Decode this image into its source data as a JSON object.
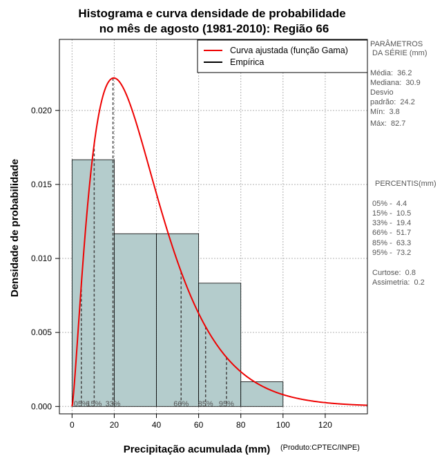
{
  "chart_data": {
    "type": "histogram",
    "title_line1": "Histograma e curva densidade de probabilidade",
    "title_line2": "no mês de agosto (1981-2010): Região 66",
    "xlabel": "Precipitação acumulada (mm)",
    "ylabel": "Densidade de probabilidade",
    "credit": "(Produto:CPTEC/INPE)",
    "xlim": [
      -6,
      140
    ],
    "ylim": [
      -0.0005,
      0.0248
    ],
    "x_ticks": [
      0,
      20,
      40,
      60,
      80,
      100,
      120
    ],
    "x_tick_labels": [
      "0",
      "20",
      "40",
      "60",
      "80",
      "100",
      "120"
    ],
    "y_ticks": [
      0.0,
      0.005,
      0.01,
      0.015,
      0.02
    ],
    "y_tick_labels": [
      "0.000",
      "0.005",
      "0.010",
      "0.015",
      "0.020"
    ],
    "grid": true,
    "bins": [
      {
        "from": 0,
        "to": 20,
        "density": 0.01667
      },
      {
        "from": 20,
        "to": 40,
        "density": 0.01167
      },
      {
        "from": 40,
        "to": 60,
        "density": 0.01167
      },
      {
        "from": 60,
        "to": 80,
        "density": 0.00833
      },
      {
        "from": 80,
        "to": 100,
        "density": 0.00167
      }
    ],
    "bar_fill": "#b4cccc",
    "curve": {
      "name": "Curva ajustada (função Gama)",
      "color": "#ee0000",
      "distribution": "gamma",
      "shape": 2.365,
      "scale": 14.49,
      "x_range": [
        0,
        140
      ]
    },
    "legend": {
      "position": "top-right",
      "entries": [
        {
          "label": "Curva ajustada (função Gama)",
          "color": "#ee0000"
        },
        {
          "label": "Empírica",
          "color": "#000000"
        }
      ]
    },
    "percentile_markers": [
      {
        "value": 4.4,
        "label": "05%"
      },
      {
        "value": 10.5,
        "label": "15%"
      },
      {
        "value": 19.4,
        "label": "33%"
      },
      {
        "value": 51.7,
        "label": "66%"
      },
      {
        "value": 63.3,
        "label": "85%"
      },
      {
        "value": 73.2,
        "label": "95%"
      }
    ]
  },
  "side_panel": {
    "params_title_1": "PARÂMETROS",
    "params_title_2": " DA SÉRIE (mm)",
    "media": "Média:  36.2",
    "mediana": "Mediana:  30.9",
    "desvio_1": "Desvio",
    "desvio_2": "padrão:  24.2",
    "min": "Mín:  3.8",
    "max": "Máx:  82.7",
    "percentis_title": "PERCENTIS(mm)",
    "p05": "05% -  4.4",
    "p15": "15% -  10.5",
    "p33": "33% -  19.4",
    "p66": "66% -  51.7",
    "p85": "85% -  63.3",
    "p95": "95% -  73.2",
    "curtose": "Curtose:  0.8",
    "assimetria": "Assimetria:  0.2"
  }
}
